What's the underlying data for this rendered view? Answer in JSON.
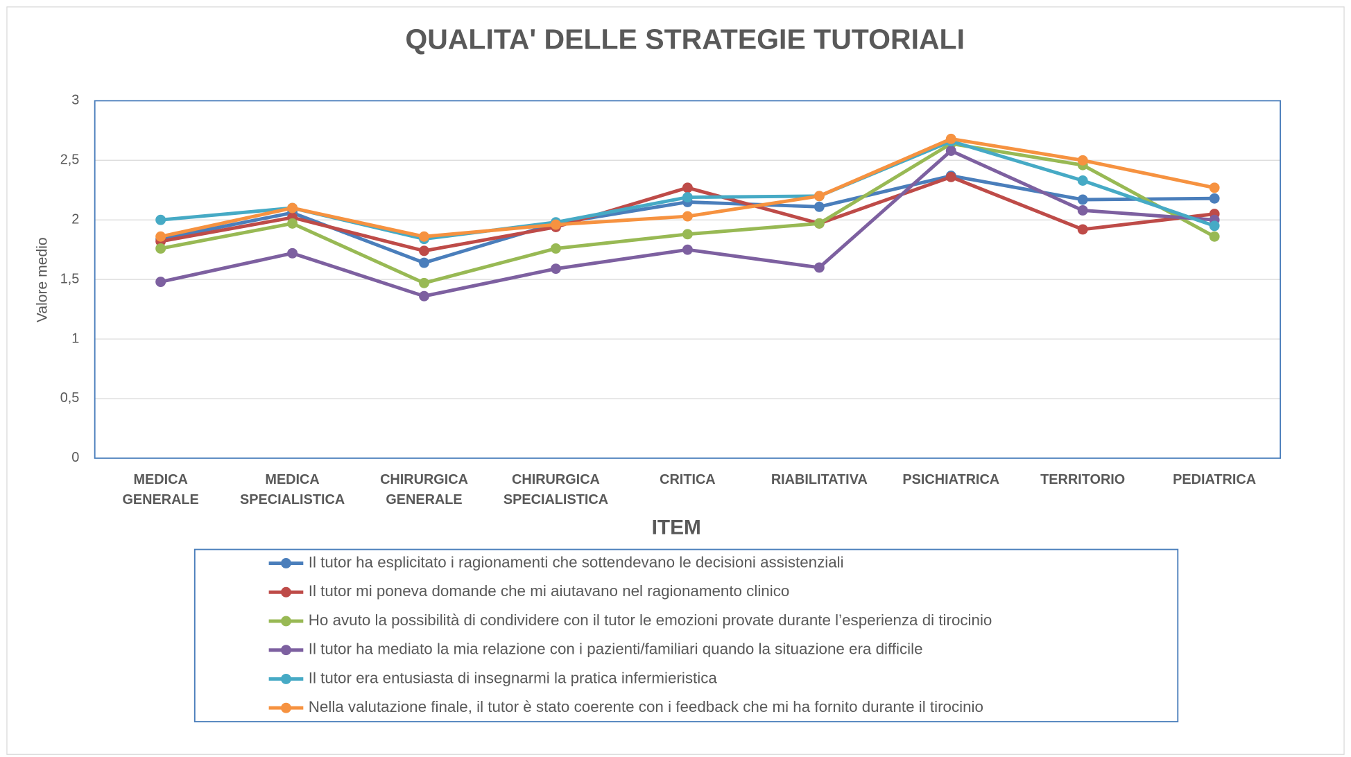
{
  "chart_data": {
    "type": "line",
    "title": "QUALITA' DELLE STRATEGIE TUTORIALI",
    "x_label": "ITEM",
    "y_label": "Valore medio",
    "categories": [
      "MEDICA\nGENERALE",
      "MEDICA\nSPECIALISTICA",
      "CHIRURGICA\nGENERALE",
      "CHIRURGICA\nSPECIALISTICA",
      "CRITICA",
      "RIABILITATIVA",
      "PSICHIATRICA",
      "TERRITORIO",
      "PEDIATRICA"
    ],
    "series": [
      {
        "name": "Il tutor ha esplicitato i ragionamenti che sottendevano le decisioni assistenziali",
        "color": "#4a7ebb",
        "values": [
          1.84,
          2.06,
          1.64,
          1.97,
          2.15,
          2.11,
          2.37,
          2.17,
          2.18
        ]
      },
      {
        "name": "Il tutor mi poneva domande che mi aiutavano nel ragionamento clinico",
        "color": "#be4b48",
        "values": [
          1.82,
          2.02,
          1.74,
          1.94,
          2.27,
          1.97,
          2.36,
          1.92,
          2.05
        ]
      },
      {
        "name": "Ho avuto la possibilità di condividere con il tutor le emozioni provate durante l’esperienza di tirocinio",
        "color": "#98b954",
        "values": [
          1.76,
          1.97,
          1.47,
          1.76,
          1.88,
          1.97,
          2.64,
          2.46,
          1.86
        ]
      },
      {
        "name": "Il tutor ha mediato la mia relazione con i pazienti/familiari quando la situazione era difficile",
        "color": "#7d60a0",
        "values": [
          1.48,
          1.72,
          1.36,
          1.59,
          1.75,
          1.6,
          2.58,
          2.08,
          2.0
        ]
      },
      {
        "name": "Il tutor era entusiasta di insegnarmi la pratica infermieristica",
        "color": "#46aac5",
        "values": [
          2.0,
          2.1,
          1.84,
          1.98,
          2.19,
          2.2,
          2.66,
          2.33,
          1.95
        ]
      },
      {
        "name": "Nella valutazione finale, il tutor è stato coerente con i feedback che mi ha fornito durante il tirocinio",
        "color": "#f69240",
        "values": [
          1.86,
          2.1,
          1.86,
          1.96,
          2.03,
          2.2,
          2.68,
          2.5,
          2.27
        ]
      }
    ],
    "ylim": [
      0,
      3
    ],
    "yticks": [
      0,
      {
        "value": 0.5,
        "label": "0,5"
      },
      1,
      {
        "value": 1.5,
        "label": "1,5"
      },
      2,
      {
        "value": 2.5,
        "label": "2,5"
      },
      3
    ],
    "grid": true,
    "legend": "bottom"
  }
}
